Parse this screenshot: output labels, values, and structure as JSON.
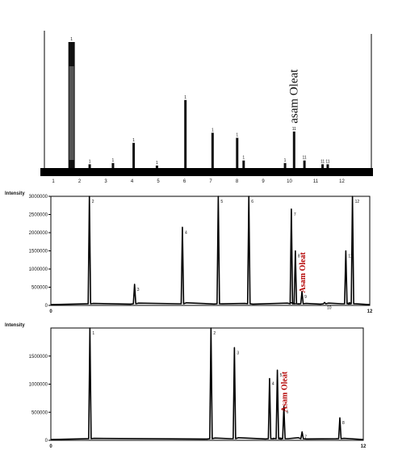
{
  "chart_data": [
    {
      "type": "bar",
      "title": "",
      "annotation": "asam Oleat",
      "annotation_color": "#111111",
      "x_ticks": [
        "1",
        "2",
        "3",
        "4",
        "5",
        "6",
        "7",
        "8",
        "9",
        "10",
        "11",
        "12"
      ],
      "xlim": [
        0.6,
        12.3
      ],
      "ylim": [
        0,
        100
      ],
      "x": [
        1.65,
        2.35,
        3.25,
        4.05,
        4.95,
        6.05,
        7.1,
        8.05,
        8.3,
        9.9,
        10.25,
        10.65,
        11.35,
        11.55
      ],
      "values": [
        100,
        3,
        4,
        20,
        2,
        54,
        28,
        24,
        6,
        4,
        29,
        6,
        3,
        3
      ],
      "peak_labels": [
        "1",
        "1",
        "1",
        "1",
        "1",
        "1",
        "1",
        "1",
        "1",
        "1",
        "11",
        "11",
        "11",
        "11"
      ],
      "bar_color": "#111111",
      "baseline_color": "#000000"
    },
    {
      "type": "line",
      "ylabel": "Intensity",
      "y_ticks": [
        "3000000",
        "2500000",
        "2000000",
        "1500000",
        "1000000",
        "500000",
        "0"
      ],
      "y_tick_values": [
        3000000,
        2500000,
        2000000,
        1500000,
        1000000,
        500000,
        0
      ],
      "ylim": [
        0,
        3000000
      ],
      "xlim": [
        0,
        12
      ],
      "x_ticks": [
        "0",
        "12"
      ],
      "annotation": "Asam Oleat",
      "annotation_color": "#b30000",
      "peaks": [
        {
          "x": 1.45,
          "height": 3000000,
          "label": "2"
        },
        {
          "x": 3.15,
          "height": 580000,
          "label": "3"
        },
        {
          "x": 4.95,
          "height": 2150000,
          "label": "4"
        },
        {
          "x": 6.3,
          "height": 3000000,
          "label": "5"
        },
        {
          "x": 7.45,
          "height": 3000000,
          "label": "6"
        },
        {
          "x": 9.05,
          "height": 2650000,
          "label": "7"
        },
        {
          "x": 9.2,
          "height": 1500000,
          "label": "8"
        },
        {
          "x": 9.45,
          "height": 380000,
          "label": "9"
        },
        {
          "x": 10.3,
          "height": 80000,
          "label": "10"
        },
        {
          "x": 11.1,
          "height": 1500000,
          "label": "11"
        },
        {
          "x": 11.35,
          "height": 3000000,
          "label": "12"
        }
      ],
      "line_color": "#111111"
    },
    {
      "type": "line",
      "ylabel": "Intensity",
      "y_ticks": [
        "1500000",
        "1000000",
        "500000",
        "0"
      ],
      "y_tick_values": [
        1500000,
        1000000,
        500000,
        0
      ],
      "ylim": [
        0,
        2000000
      ],
      "xlim": [
        0,
        12
      ],
      "x_ticks": [
        "0",
        "12"
      ],
      "annotation": "Asam Oleat",
      "annotation_color": "#b30000",
      "peaks": [
        {
          "x": 1.5,
          "height": 2000000,
          "label": "1"
        },
        {
          "x": 6.15,
          "height": 2000000,
          "label": "2"
        },
        {
          "x": 7.05,
          "height": 1650000,
          "label": "3"
        },
        {
          "x": 8.4,
          "height": 1100000,
          "label": "4"
        },
        {
          "x": 8.7,
          "height": 1250000,
          "label": "5"
        },
        {
          "x": 8.95,
          "height": 600000,
          "label": "6"
        },
        {
          "x": 9.65,
          "height": 150000,
          "label": "7"
        },
        {
          "x": 11.1,
          "height": 400000,
          "label": "8"
        }
      ],
      "line_color": "#111111"
    }
  ]
}
